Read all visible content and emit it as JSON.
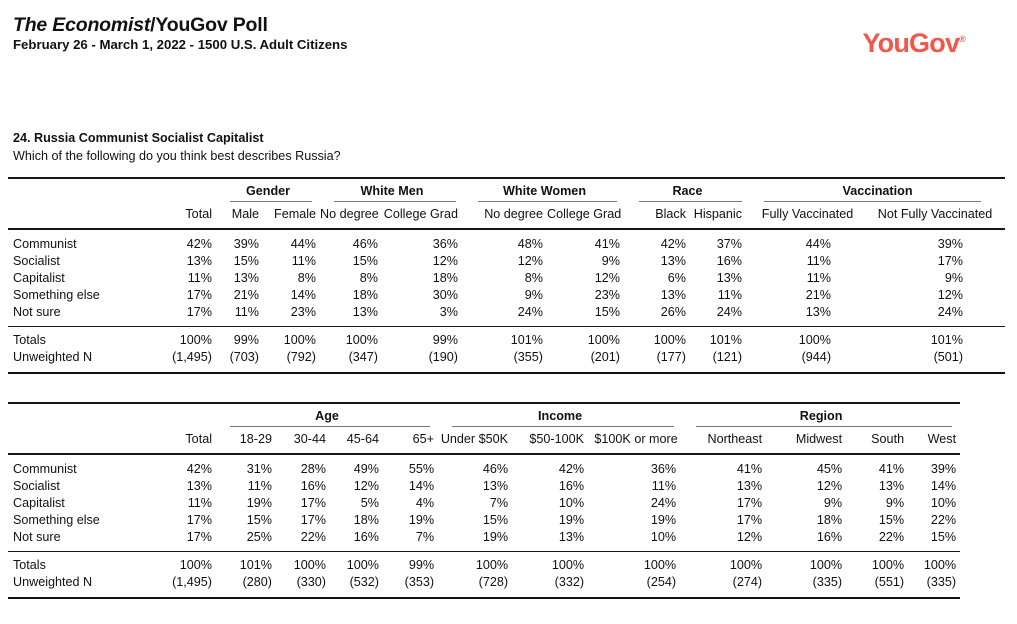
{
  "page": {
    "title_italic": "The Economist",
    "title_rest": "/YouGov Poll",
    "subtitle": "February 26 - March 1, 2022 - 1500 U.S. Adult Citizens",
    "logo_text": "YouGov",
    "logo_reg": "®",
    "logo_color": "#F2574A"
  },
  "question": {
    "heading": "24. Russia Communist Socialist Capitalist",
    "text": "Which of the following do you think best describes Russia?"
  },
  "tables": [
    {
      "total_header": "Total",
      "groups": [
        {
          "label": "Gender",
          "cols": [
            "Male",
            "Female"
          ]
        },
        {
          "label": "White Men",
          "cols": [
            "No degree",
            "College Grad"
          ]
        },
        {
          "label": "White Women",
          "cols": [
            "No degree",
            "College Grad"
          ]
        },
        {
          "label": "Race",
          "cols": [
            "Black",
            "Hispanic"
          ]
        },
        {
          "label": "Vaccination",
          "cols": [
            "Fully Vaccinated",
            "Not Fully Vaccinated"
          ]
        }
      ],
      "rows": [
        {
          "label": "Communist",
          "values": [
            "42%",
            "39%",
            "44%",
            "46%",
            "36%",
            "48%",
            "41%",
            "42%",
            "37%",
            "44%",
            "39%"
          ]
        },
        {
          "label": "Socialist",
          "values": [
            "13%",
            "15%",
            "11%",
            "15%",
            "12%",
            "12%",
            "9%",
            "13%",
            "16%",
            "11%",
            "17%"
          ]
        },
        {
          "label": "Capitalist",
          "values": [
            "11%",
            "13%",
            "8%",
            "8%",
            "18%",
            "8%",
            "12%",
            "6%",
            "13%",
            "11%",
            "9%"
          ]
        },
        {
          "label": "Something else",
          "values": [
            "17%",
            "21%",
            "14%",
            "18%",
            "30%",
            "9%",
            "23%",
            "13%",
            "11%",
            "21%",
            "12%"
          ]
        },
        {
          "label": "Not sure",
          "values": [
            "17%",
            "11%",
            "23%",
            "13%",
            "3%",
            "24%",
            "15%",
            "26%",
            "24%",
            "13%",
            "24%"
          ]
        }
      ],
      "totals": {
        "label": "Totals",
        "values": [
          "100%",
          "99%",
          "100%",
          "100%",
          "99%",
          "101%",
          "100%",
          "100%",
          "101%",
          "100%",
          "101%"
        ]
      },
      "unweighted": {
        "label": "Unweighted N",
        "values": [
          "(1,495)",
          "(703)",
          "(792)",
          "(347)",
          "(190)",
          "(355)",
          "(201)",
          "(177)",
          "(121)",
          "(944)",
          "(501)"
        ]
      }
    },
    {
      "total_header": "Total",
      "groups": [
        {
          "label": "Age",
          "cols": [
            "18-29",
            "30-44",
            "45-64",
            "65+"
          ]
        },
        {
          "label": "Income",
          "cols": [
            "Under $50K",
            "$50-100K",
            "$100K or more"
          ]
        },
        {
          "label": "Region",
          "cols": [
            "Northeast",
            "Midwest",
            "South",
            "West"
          ]
        }
      ],
      "rows": [
        {
          "label": "Communist",
          "values": [
            "42%",
            "31%",
            "28%",
            "49%",
            "55%",
            "46%",
            "42%",
            "36%",
            "41%",
            "45%",
            "41%",
            "39%"
          ]
        },
        {
          "label": "Socialist",
          "values": [
            "13%",
            "11%",
            "16%",
            "12%",
            "14%",
            "13%",
            "16%",
            "11%",
            "13%",
            "12%",
            "13%",
            "14%"
          ]
        },
        {
          "label": "Capitalist",
          "values": [
            "11%",
            "19%",
            "17%",
            "5%",
            "4%",
            "7%",
            "10%",
            "24%",
            "17%",
            "9%",
            "9%",
            "10%"
          ]
        },
        {
          "label": "Something else",
          "values": [
            "17%",
            "15%",
            "17%",
            "18%",
            "19%",
            "15%",
            "19%",
            "19%",
            "17%",
            "18%",
            "15%",
            "22%"
          ]
        },
        {
          "label": "Not sure",
          "values": [
            "17%",
            "25%",
            "22%",
            "16%",
            "7%",
            "19%",
            "13%",
            "10%",
            "12%",
            "16%",
            "22%",
            "15%"
          ]
        }
      ],
      "totals": {
        "label": "Totals",
        "values": [
          "100%",
          "101%",
          "100%",
          "100%",
          "99%",
          "100%",
          "100%",
          "100%",
          "100%",
          "100%",
          "100%",
          "100%"
        ]
      },
      "unweighted": {
        "label": "Unweighted N",
        "values": [
          "(1,495)",
          "(280)",
          "(330)",
          "(532)",
          "(353)",
          "(728)",
          "(332)",
          "(254)",
          "(274)",
          "(335)",
          "(551)",
          "(335)"
        ]
      }
    }
  ]
}
